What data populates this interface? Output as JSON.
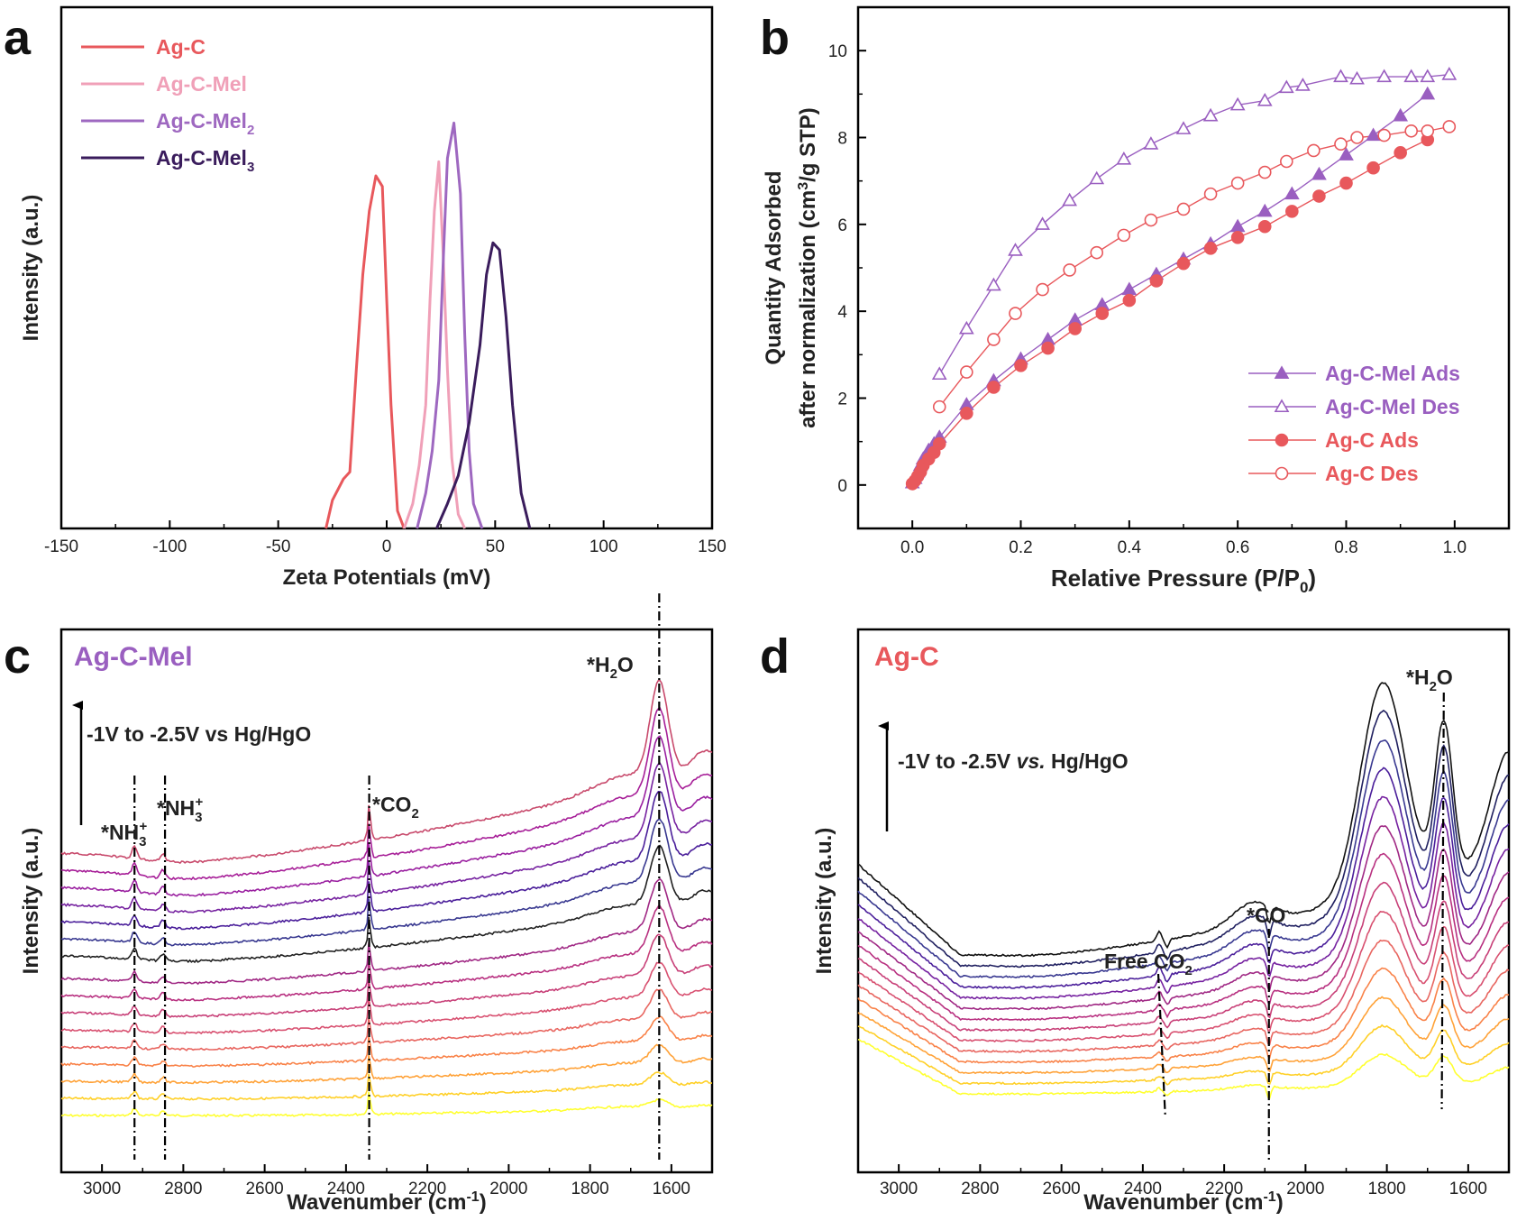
{
  "chart_data": [
    {
      "panel": "a",
      "type": "line",
      "xlabel": "Zeta Potentials (mV)",
      "ylabel": "Intensity (a.u.)",
      "xlim": [
        -150,
        150
      ],
      "xticks": [
        -150,
        -100,
        -50,
        0,
        50,
        100,
        150
      ],
      "ylim": [
        0,
        1.02
      ],
      "legend_position": "top-left",
      "series": [
        {
          "name": "Ag-C",
          "color": "#e8585c",
          "x": [
            -28,
            -25,
            -20,
            -17,
            -14,
            -11,
            -8,
            -5,
            -2,
            0,
            2,
            5,
            8
          ],
          "y": [
            0,
            0.08,
            0.14,
            0.16,
            0.45,
            0.72,
            0.9,
            1.0,
            0.97,
            0.65,
            0.35,
            0.05,
            0
          ]
        },
        {
          "name": "Ag-C-Mel",
          "color": "#f0a0b8",
          "x": [
            8,
            12,
            15,
            18,
            20,
            22,
            24,
            26,
            28,
            30,
            33,
            36
          ],
          "y": [
            0,
            0.07,
            0.18,
            0.35,
            0.65,
            0.9,
            1.04,
            0.78,
            0.45,
            0.2,
            0.04,
            0
          ]
        },
        {
          "name": "Ag-C-Mel2",
          "color": "#9e68c0",
          "x": [
            14,
            18,
            21,
            24,
            26,
            28,
            31,
            34,
            36,
            38,
            40,
            44
          ],
          "y": [
            0,
            0.1,
            0.22,
            0.42,
            0.75,
            1.05,
            1.15,
            0.95,
            0.55,
            0.22,
            0.07,
            0
          ]
        },
        {
          "name": "Ag-C-Mel3",
          "color": "#3a1c5c",
          "x": [
            23,
            28,
            33,
            38,
            43,
            46,
            49,
            52,
            55,
            58,
            62,
            66
          ],
          "y": [
            0,
            0.07,
            0.15,
            0.3,
            0.52,
            0.72,
            0.81,
            0.79,
            0.6,
            0.35,
            0.1,
            0
          ]
        }
      ]
    },
    {
      "panel": "b",
      "type": "scatter",
      "xlabel": "Relative Pressure (P/P0)",
      "ylabel": "Quantity Adsorbed after normalization (cm3/g STP)",
      "xlim": [
        -0.1,
        1.1
      ],
      "ylim": [
        -1,
        11
      ],
      "xticks": [
        0.0,
        0.2,
        0.4,
        0.6,
        0.8,
        1.0
      ],
      "yticks": [
        0,
        2,
        4,
        6,
        8,
        10
      ],
      "legend_position": "bottom-right",
      "series": [
        {
          "name": "Ag-C-Mel Ads",
          "color": "#9a5fc0",
          "marker": "triangle-filled",
          "x": [
            0.0,
            0.005,
            0.01,
            0.015,
            0.02,
            0.03,
            0.04,
            0.05,
            0.1,
            0.15,
            0.2,
            0.25,
            0.3,
            0.35,
            0.4,
            0.45,
            0.5,
            0.55,
            0.6,
            0.65,
            0.7,
            0.75,
            0.8,
            0.85,
            0.9,
            0.95
          ],
          "y": [
            0.05,
            0.15,
            0.3,
            0.45,
            0.6,
            0.8,
            0.95,
            1.1,
            1.85,
            2.4,
            2.9,
            3.35,
            3.8,
            4.15,
            4.5,
            4.85,
            5.2,
            5.55,
            5.95,
            6.3,
            6.7,
            7.15,
            7.6,
            8.05,
            8.5,
            9.0
          ]
        },
        {
          "name": "Ag-C-Mel Des",
          "color": "#9a5fc0",
          "marker": "triangle-open",
          "x": [
            0.99,
            0.95,
            0.92,
            0.87,
            0.82,
            0.79,
            0.72,
            0.69,
            0.65,
            0.6,
            0.55,
            0.5,
            0.44,
            0.39,
            0.34,
            0.29,
            0.24,
            0.19,
            0.15,
            0.1,
            0.05
          ],
          "y": [
            9.45,
            9.4,
            9.4,
            9.4,
            9.35,
            9.4,
            9.2,
            9.15,
            8.85,
            8.75,
            8.5,
            8.2,
            7.85,
            7.5,
            7.05,
            6.55,
            6.0,
            5.4,
            4.6,
            3.6,
            2.55
          ]
        },
        {
          "name": "Ag-C Ads",
          "color": "#e8585c",
          "marker": "circle-filled",
          "x": [
            0.0,
            0.005,
            0.01,
            0.015,
            0.02,
            0.03,
            0.04,
            0.05,
            0.1,
            0.15,
            0.2,
            0.25,
            0.3,
            0.35,
            0.4,
            0.45,
            0.5,
            0.55,
            0.6,
            0.65,
            0.7,
            0.75,
            0.8,
            0.85,
            0.9,
            0.95
          ],
          "y": [
            0.03,
            0.1,
            0.2,
            0.3,
            0.45,
            0.6,
            0.75,
            0.95,
            1.65,
            2.25,
            2.75,
            3.15,
            3.6,
            3.95,
            4.25,
            4.7,
            5.1,
            5.45,
            5.7,
            5.95,
            6.3,
            6.65,
            6.95,
            7.3,
            7.65,
            7.95
          ]
        },
        {
          "name": "Ag-C Des",
          "color": "#e8585c",
          "marker": "circle-open",
          "x": [
            0.99,
            0.95,
            0.92,
            0.87,
            0.82,
            0.79,
            0.74,
            0.69,
            0.65,
            0.6,
            0.55,
            0.5,
            0.44,
            0.39,
            0.34,
            0.29,
            0.24,
            0.19,
            0.15,
            0.1,
            0.05
          ],
          "y": [
            8.25,
            8.15,
            8.15,
            8.05,
            8.0,
            7.85,
            7.7,
            7.45,
            7.2,
            6.95,
            6.7,
            6.35,
            6.1,
            5.75,
            5.35,
            4.95,
            4.5,
            3.95,
            3.35,
            2.6,
            1.8
          ]
        }
      ]
    },
    {
      "panel": "c",
      "type": "line",
      "title": "Ag-C-Mel",
      "xlabel": "Wavenumber (cm-1)",
      "ylabel": "Intensity (a.u.)",
      "xlim": [
        3100,
        1500
      ],
      "xticks": [
        3000,
        2800,
        2600,
        2400,
        2200,
        2000,
        1800,
        1600
      ],
      "annotation_arrow": "-1V to -2.5V vs Hg/HgO",
      "peaks": [
        {
          "label": "*NH3+",
          "x": 2920
        },
        {
          "label": "*NH3+",
          "x": 2845
        },
        {
          "label": "*CO2",
          "x": 2343
        },
        {
          "label": "*H2O",
          "x": 1630
        }
      ],
      "series_count": 16,
      "series_colors": [
        "#ffff30",
        "#ffd028",
        "#ffa238",
        "#f98248",
        "#e86660",
        "#d85070",
        "#c84078",
        "#b83080",
        "#a02884",
        "#202020",
        "#383890",
        "#4a1e9a",
        "#7622a0",
        "#9a20a0",
        "#a71f98",
        "#c84a6c"
      ]
    },
    {
      "panel": "d",
      "type": "line",
      "title": "Ag-C",
      "xlabel": "Wavenumber (cm-1)",
      "ylabel": "Intensity (a.u.)",
      "xlim": [
        3100,
        1500
      ],
      "xticks": [
        3000,
        2800,
        2600,
        2400,
        2200,
        2000,
        1800,
        1600
      ],
      "annotation_arrow": "-1V to -2.5V vs. Hg/HgO",
      "peaks": [
        {
          "label": "Free CO2",
          "x": 2355
        },
        {
          "label": "*CO",
          "x": 2090
        },
        {
          "label": "*H2O",
          "x": 1660
        }
      ],
      "series_count": 14,
      "series_colors": [
        "#ffff30",
        "#ffd028",
        "#ffa238",
        "#f98248",
        "#e86660",
        "#d85070",
        "#c84078",
        "#b83080",
        "#a02884",
        "#7622a0",
        "#4a1e9a",
        "#383890",
        "#202060",
        "#111111"
      ]
    }
  ],
  "panels": {
    "a": {
      "letter": "a",
      "xlabel": "Zeta Potentials (mV)",
      "ylabel": "Intensity (a.u.)",
      "xticks": [
        "-150",
        "-100",
        "-50",
        "0",
        "50",
        "100",
        "150"
      ],
      "legend": [
        {
          "base": "Ag-C",
          "sub": "",
          "color": "#e8585c"
        },
        {
          "base": "Ag-C-Mel",
          "sub": "",
          "color": "#f0a0b8"
        },
        {
          "base": "Ag-C-Mel",
          "sub": "2",
          "color": "#9e68c0"
        },
        {
          "base": "Ag-C-Mel",
          "sub": "3",
          "color": "#3a1c5c"
        }
      ]
    },
    "b": {
      "letter": "b",
      "xlabel_base": "Relative Pressure (P/P",
      "xlabel_sub": "0",
      "xlabel_end": ")",
      "ylabel_line1": "Quantity Adsorbed",
      "ylabel_line2_a": "after normalization (cm",
      "ylabel_line2_sup": "3",
      "ylabel_line2_b": "/g STP)",
      "xticks": [
        "0.0",
        "0.2",
        "0.4",
        "0.6",
        "0.8",
        "1.0"
      ],
      "yticks": [
        "0",
        "2",
        "4",
        "6",
        "8",
        "10"
      ],
      "legend": [
        "Ag-C-Mel Ads",
        "Ag-C-Mel Des",
        "Ag-C Ads",
        "Ag-C Des"
      ]
    },
    "c": {
      "letter": "c",
      "title": "Ag-C-Mel",
      "xlabel_base": "Wavenumber (cm",
      "xlabel_sup": "-1",
      "xlabel_end": ")",
      "ylabel": "Intensity (a.u.)",
      "arrow_text": "-1V to -2.5V vs Hg/HgO",
      "xticks": [
        "3000",
        "2800",
        "2600",
        "2400",
        "2200",
        "2000",
        "1800",
        "1600"
      ]
    },
    "d": {
      "letter": "d",
      "title": "Ag-C",
      "xlabel_base": "Wavenumber (cm",
      "xlabel_sup": "-1",
      "xlabel_end": ")",
      "ylabel": "Intensity (a.u.)",
      "arrow_text_a": "-1V to -2.5V ",
      "arrow_text_b": "vs.",
      "arrow_text_c": " Hg/HgO",
      "xticks": [
        "3000",
        "2800",
        "2600",
        "2400",
        "2200",
        "2000",
        "1800",
        "1600"
      ]
    },
    "annotations": {
      "nh3": "*NH",
      "three": "3",
      "plus": "+",
      "co2_star": "*CO",
      "two": "2",
      "h2o_a": "*H",
      "h2o_b": "O",
      "co": "*CO",
      "free_co2": "Free CO"
    }
  }
}
